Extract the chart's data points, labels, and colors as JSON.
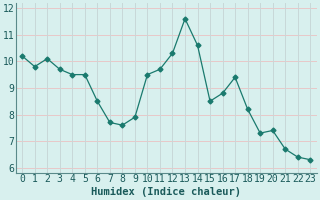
{
  "x": [
    0,
    1,
    2,
    3,
    4,
    5,
    6,
    7,
    8,
    9,
    10,
    11,
    12,
    13,
    14,
    15,
    16,
    17,
    18,
    19,
    20,
    21,
    22,
    23
  ],
  "y": [
    10.2,
    9.8,
    10.1,
    9.7,
    9.5,
    9.5,
    8.5,
    7.7,
    7.6,
    7.9,
    9.5,
    9.7,
    10.3,
    11.6,
    10.6,
    8.5,
    8.8,
    9.4,
    8.2,
    7.3,
    7.4,
    6.7,
    6.4,
    6.3
  ],
  "line_color": "#1a7a6e",
  "marker": "D",
  "marker_size": 2.5,
  "bg_color": "#d8f0ee",
  "grid_color_h": "#e8c8c8",
  "grid_color_v": "#c8d8d8",
  "xlabel": "Humidex (Indice chaleur)",
  "xlim": [
    -0.5,
    23.5
  ],
  "ylim": [
    5.8,
    12.2
  ],
  "yticks": [
    6,
    7,
    8,
    9,
    10,
    11,
    12
  ],
  "xticks": [
    0,
    1,
    2,
    3,
    4,
    5,
    6,
    7,
    8,
    9,
    10,
    11,
    12,
    13,
    14,
    15,
    16,
    17,
    18,
    19,
    20,
    21,
    22,
    23
  ],
  "xlabel_fontsize": 7.5,
  "tick_fontsize": 7
}
